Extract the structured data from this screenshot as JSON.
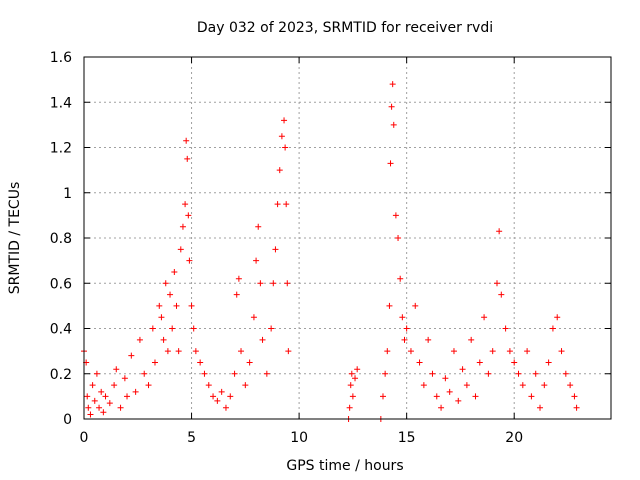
{
  "chart_data": {
    "type": "scatter",
    "title": "Day 032 of 2023, SRMTID for receiver rvdi",
    "xlabel": "GPS time / hours",
    "ylabel": "SRMTID / TECUs",
    "xlim": [
      0,
      24.5
    ],
    "ylim": [
      0,
      1.6
    ],
    "xticks": [
      0,
      5,
      10,
      15,
      20
    ],
    "xtick_labels": [
      "0",
      "5",
      "10",
      "15",
      "20"
    ],
    "yticks": [
      0,
      0.2,
      0.4,
      0.6,
      0.8,
      1.0,
      1.2,
      1.4,
      1.6
    ],
    "ytick_labels": [
      "0",
      "0.2",
      "0.4",
      "0.6",
      "0.8",
      "1",
      "1.2",
      "1.4",
      "1.6"
    ],
    "grid": true,
    "marker": "+",
    "series": [
      {
        "name": "SRMTID",
        "color": "#ff0000",
        "points": [
          [
            0.0,
            0.3
          ],
          [
            0.1,
            0.25
          ],
          [
            0.15,
            0.1
          ],
          [
            0.2,
            0.05
          ],
          [
            0.3,
            0.02
          ],
          [
            0.4,
            0.15
          ],
          [
            0.5,
            0.08
          ],
          [
            0.6,
            0.2
          ],
          [
            0.7,
            0.05
          ],
          [
            0.8,
            0.12
          ],
          [
            0.9,
            0.03
          ],
          [
            1.0,
            0.1
          ],
          [
            1.2,
            0.07
          ],
          [
            1.4,
            0.15
          ],
          [
            1.5,
            0.22
          ],
          [
            1.7,
            0.05
          ],
          [
            1.9,
            0.18
          ],
          [
            2.0,
            0.1
          ],
          [
            2.2,
            0.28
          ],
          [
            2.4,
            0.12
          ],
          [
            2.6,
            0.35
          ],
          [
            2.8,
            0.2
          ],
          [
            3.0,
            0.15
          ],
          [
            3.2,
            0.4
          ],
          [
            3.3,
            0.25
          ],
          [
            3.5,
            0.5
          ],
          [
            3.6,
            0.45
          ],
          [
            3.7,
            0.35
          ],
          [
            3.8,
            0.6
          ],
          [
            3.9,
            0.3
          ],
          [
            4.0,
            0.55
          ],
          [
            4.1,
            0.4
          ],
          [
            4.2,
            0.65
          ],
          [
            4.3,
            0.5
          ],
          [
            4.4,
            0.3
          ],
          [
            4.5,
            0.75
          ],
          [
            4.6,
            0.85
          ],
          [
            4.7,
            0.95
          ],
          [
            4.75,
            1.23
          ],
          [
            4.8,
            1.15
          ],
          [
            4.85,
            0.9
          ],
          [
            4.9,
            0.7
          ],
          [
            5.0,
            0.5
          ],
          [
            5.1,
            0.4
          ],
          [
            5.2,
            0.3
          ],
          [
            5.4,
            0.25
          ],
          [
            5.6,
            0.2
          ],
          [
            5.8,
            0.15
          ],
          [
            6.0,
            0.1
          ],
          [
            6.2,
            0.08
          ],
          [
            6.4,
            0.12
          ],
          [
            6.6,
            0.05
          ],
          [
            6.8,
            0.1
          ],
          [
            7.0,
            0.2
          ],
          [
            7.1,
            0.55
          ],
          [
            7.2,
            0.62
          ],
          [
            7.3,
            0.3
          ],
          [
            7.5,
            0.15
          ],
          [
            7.7,
            0.25
          ],
          [
            7.9,
            0.45
          ],
          [
            8.0,
            0.7
          ],
          [
            8.1,
            0.85
          ],
          [
            8.2,
            0.6
          ],
          [
            8.3,
            0.35
          ],
          [
            8.5,
            0.2
          ],
          [
            8.7,
            0.4
          ],
          [
            8.8,
            0.6
          ],
          [
            8.9,
            0.75
          ],
          [
            9.0,
            0.95
          ],
          [
            9.1,
            1.1
          ],
          [
            9.2,
            1.25
          ],
          [
            9.3,
            1.32
          ],
          [
            9.35,
            1.2
          ],
          [
            9.4,
            0.95
          ],
          [
            9.45,
            0.6
          ],
          [
            9.5,
            0.3
          ],
          [
            12.3,
            0.0
          ],
          [
            12.35,
            0.05
          ],
          [
            12.4,
            0.15
          ],
          [
            12.45,
            0.2
          ],
          [
            12.5,
            0.1
          ],
          [
            12.6,
            0.18
          ],
          [
            12.7,
            0.22
          ],
          [
            13.8,
            0.0
          ],
          [
            13.9,
            0.1
          ],
          [
            14.0,
            0.2
          ],
          [
            14.1,
            0.3
          ],
          [
            14.2,
            0.5
          ],
          [
            14.25,
            1.13
          ],
          [
            14.3,
            1.38
          ],
          [
            14.35,
            1.48
          ],
          [
            14.4,
            1.3
          ],
          [
            14.5,
            0.9
          ],
          [
            14.6,
            0.8
          ],
          [
            14.7,
            0.62
          ],
          [
            14.8,
            0.45
          ],
          [
            14.9,
            0.35
          ],
          [
            15.0,
            0.4
          ],
          [
            15.2,
            0.3
          ],
          [
            15.4,
            0.5
          ],
          [
            15.6,
            0.25
          ],
          [
            15.8,
            0.15
          ],
          [
            16.0,
            0.35
          ],
          [
            16.2,
            0.2
          ],
          [
            16.4,
            0.1
          ],
          [
            16.6,
            0.05
          ],
          [
            16.8,
            0.18
          ],
          [
            17.0,
            0.12
          ],
          [
            17.2,
            0.3
          ],
          [
            17.4,
            0.08
          ],
          [
            17.6,
            0.22
          ],
          [
            17.8,
            0.15
          ],
          [
            18.0,
            0.35
          ],
          [
            18.2,
            0.1
          ],
          [
            18.4,
            0.25
          ],
          [
            18.6,
            0.45
          ],
          [
            18.8,
            0.2
          ],
          [
            19.0,
            0.3
          ],
          [
            19.2,
            0.6
          ],
          [
            19.3,
            0.83
          ],
          [
            19.4,
            0.55
          ],
          [
            19.6,
            0.4
          ],
          [
            19.8,
            0.3
          ],
          [
            20.0,
            0.25
          ],
          [
            20.2,
            0.2
          ],
          [
            20.4,
            0.15
          ],
          [
            20.6,
            0.3
          ],
          [
            20.8,
            0.1
          ],
          [
            21.0,
            0.2
          ],
          [
            21.2,
            0.05
          ],
          [
            21.4,
            0.15
          ],
          [
            21.6,
            0.25
          ],
          [
            21.8,
            0.4
          ],
          [
            22.0,
            0.45
          ],
          [
            22.2,
            0.3
          ],
          [
            22.4,
            0.2
          ],
          [
            22.6,
            0.15
          ],
          [
            22.8,
            0.1
          ],
          [
            22.9,
            0.05
          ]
        ]
      }
    ]
  }
}
